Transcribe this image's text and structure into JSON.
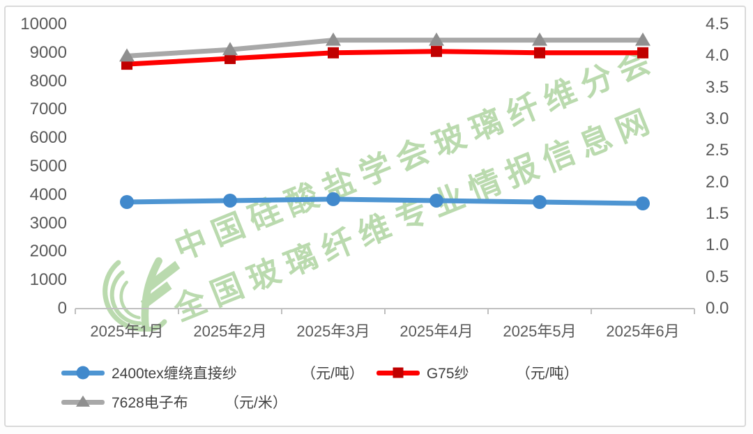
{
  "chart_data": {
    "type": "line",
    "categories": [
      "2025年1月",
      "2025年2月",
      "2025年3月",
      "2025年4月",
      "2025年5月",
      "2025年6月"
    ],
    "series": [
      {
        "name": "2400tex缠绕直接纱",
        "unit": "（元/吨）",
        "axis": "left",
        "marker": "circle",
        "color": "#4E95D2",
        "marker_color": "#4189CC",
        "values": [
          3750,
          3800,
          3850,
          3800,
          3750,
          3700
        ]
      },
      {
        "name": "G75纱",
        "unit": "（元/吨）",
        "axis": "left",
        "marker": "square",
        "color": "#FE0000",
        "marker_color": "#C00000",
        "values": [
          8600,
          8800,
          9000,
          9050,
          9000,
          9000
        ]
      },
      {
        "name": "7628电子布",
        "unit": "（元/米）",
        "axis": "right",
        "marker": "triangle",
        "color": "#A8A8A8",
        "marker_color": "#8F8F8F",
        "values": [
          4.0,
          4.1,
          4.25,
          4.25,
          4.25,
          4.25
        ]
      }
    ],
    "left_axis": {
      "min": 0,
      "max": 10000,
      "tick_step": 1000,
      "tick_labels": [
        "10000",
        "9000",
        "8000",
        "7000",
        "6000",
        "5000",
        "4000",
        "3000",
        "2000",
        "1000",
        "0"
      ]
    },
    "right_axis": {
      "min": 0,
      "max": 4.5,
      "tick_step": 0.5,
      "tick_labels": [
        "4.5",
        "4.0",
        "3.5",
        "3.0",
        "2.5",
        "2.0",
        "1.5",
        "1.0",
        "0.5",
        "0.0"
      ]
    },
    "grid": false,
    "legend_position": "bottom-left",
    "axis_line_color": "#BFBFBF",
    "axis_text_color": "#595959"
  },
  "watermark": {
    "line1": "中国硅酸盐学会玻璃纤维分会",
    "line2": "全国玻璃纤维专业情报信息网",
    "color": "#AED4A0"
  },
  "frame": {
    "border_color": "#D9D9D9",
    "background": "#FFFFFF"
  }
}
